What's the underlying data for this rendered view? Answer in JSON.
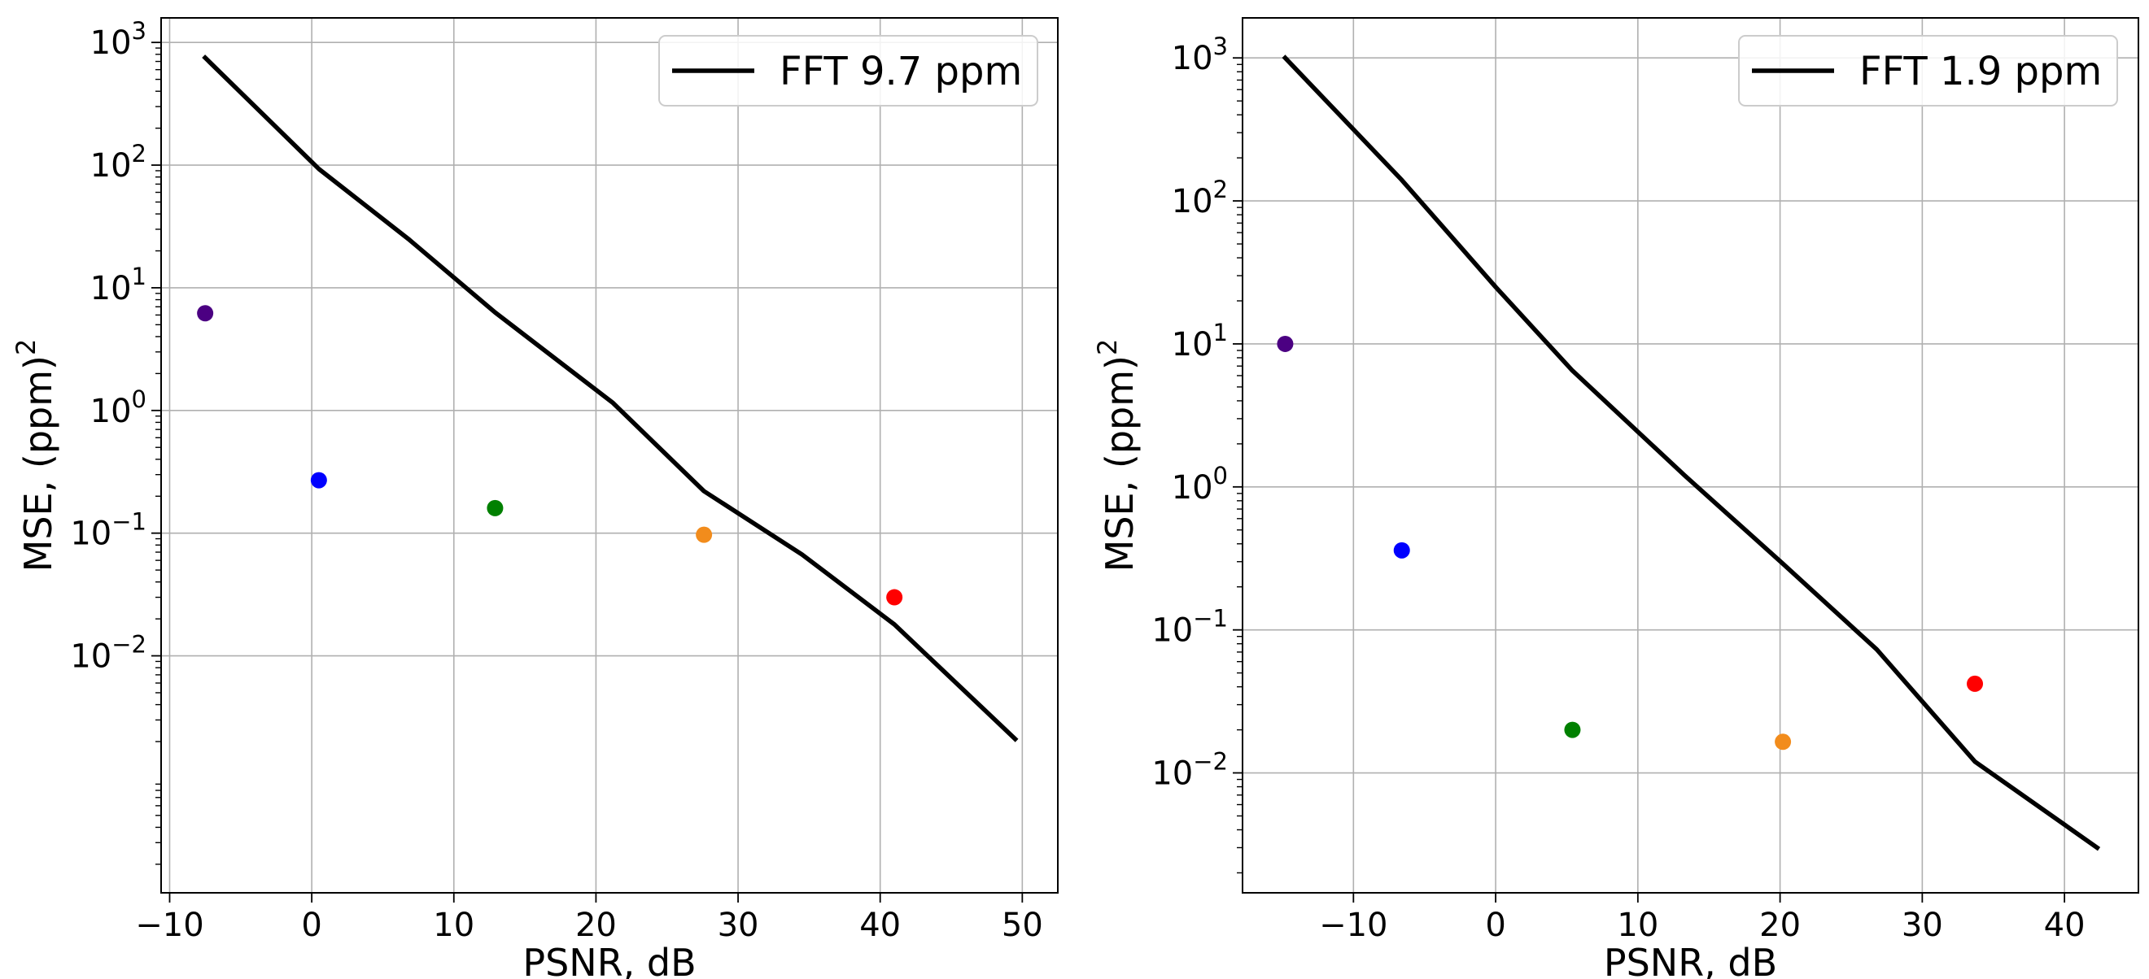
{
  "chart_data": [
    {
      "type": "line",
      "xlabel": "PSNR, dB",
      "ylabel": "MSE, (ppm)",
      "ylabel_superscript": "2",
      "yscale": "log",
      "grid": true,
      "legend_location": "top-right",
      "xlim": [
        -10.6,
        52.5
      ],
      "ylim": [
        0.000117,
        1585
      ],
      "xticks": [
        {
          "value": -10,
          "label": "−10"
        },
        {
          "value": 0,
          "label": "0"
        },
        {
          "value": 10,
          "label": "10"
        },
        {
          "value": 20,
          "label": "20"
        },
        {
          "value": 30,
          "label": "30"
        },
        {
          "value": 40,
          "label": "40"
        },
        {
          "value": 50,
          "label": "50"
        }
      ],
      "yticks": [
        {
          "value": 1000,
          "base": "10",
          "exp": "3"
        },
        {
          "value": 100,
          "base": "10",
          "exp": "2"
        },
        {
          "value": 10,
          "base": "10",
          "exp": "1"
        },
        {
          "value": 1,
          "base": "10",
          "exp": "0"
        },
        {
          "value": 0.1,
          "base": "10",
          "exp": "−1"
        },
        {
          "value": 0.01,
          "base": "10",
          "exp": "−2"
        }
      ],
      "series": [
        {
          "name": "FFT 9.7 ppm",
          "color": "#000000",
          "x": [
            -7.5,
            0.5,
            6.8,
            12.9,
            21.2,
            27.6,
            34.5,
            41.0,
            49.5
          ],
          "y": [
            750,
            93,
            25,
            6.3,
            1.15,
            0.22,
            0.067,
            0.018,
            0.0021
          ]
        }
      ],
      "points": [
        {
          "x": -7.5,
          "y": 6.2,
          "color": "#4b0082"
        },
        {
          "x": 0.5,
          "y": 0.27,
          "color": "#0000ff"
        },
        {
          "x": 12.9,
          "y": 0.16,
          "color": "#008000"
        },
        {
          "x": 27.6,
          "y": 0.097,
          "color": "#f28c1c"
        },
        {
          "x": 41.0,
          "y": 0.03,
          "color": "#ff0000"
        }
      ]
    },
    {
      "type": "line",
      "xlabel": "PSNR, dB",
      "ylabel": "MSE, (ppm)",
      "ylabel_superscript": "2",
      "yscale": "log",
      "grid": true,
      "legend_location": "top-right",
      "xlim": [
        -17.8,
        45.2
      ],
      "ylim": [
        0.00145,
        1905
      ],
      "xticks": [
        {
          "value": -10,
          "label": "−10"
        },
        {
          "value": 0,
          "label": "0"
        },
        {
          "value": 10,
          "label": "10"
        },
        {
          "value": 20,
          "label": "20"
        },
        {
          "value": 30,
          "label": "30"
        },
        {
          "value": 40,
          "label": "40"
        }
      ],
      "yticks": [
        {
          "value": 1000,
          "base": "10",
          "exp": "3"
        },
        {
          "value": 100,
          "base": "10",
          "exp": "2"
        },
        {
          "value": 10,
          "base": "10",
          "exp": "1"
        },
        {
          "value": 1,
          "base": "10",
          "exp": "0"
        },
        {
          "value": 0.1,
          "base": "10",
          "exp": "−1"
        },
        {
          "value": 0.01,
          "base": "10",
          "exp": "−2"
        }
      ],
      "series": [
        {
          "name": "FFT 1.9 ppm",
          "color": "#000000",
          "x": [
            -14.8,
            -6.6,
            0.0,
            5.4,
            13.3,
            20.2,
            26.8,
            33.7,
            42.3
          ],
          "y": [
            1000,
            140,
            25,
            6.5,
            1.2,
            0.29,
            0.073,
            0.012,
            0.003
          ]
        }
      ],
      "points": [
        {
          "x": -14.8,
          "y": 10,
          "color": "#4b0082"
        },
        {
          "x": -6.6,
          "y": 0.36,
          "color": "#0000ff"
        },
        {
          "x": 5.4,
          "y": 0.02,
          "color": "#008000"
        },
        {
          "x": 20.2,
          "y": 0.0165,
          "color": "#f28c1c"
        },
        {
          "x": 33.7,
          "y": 0.042,
          "color": "#ff0000"
        }
      ]
    }
  ]
}
